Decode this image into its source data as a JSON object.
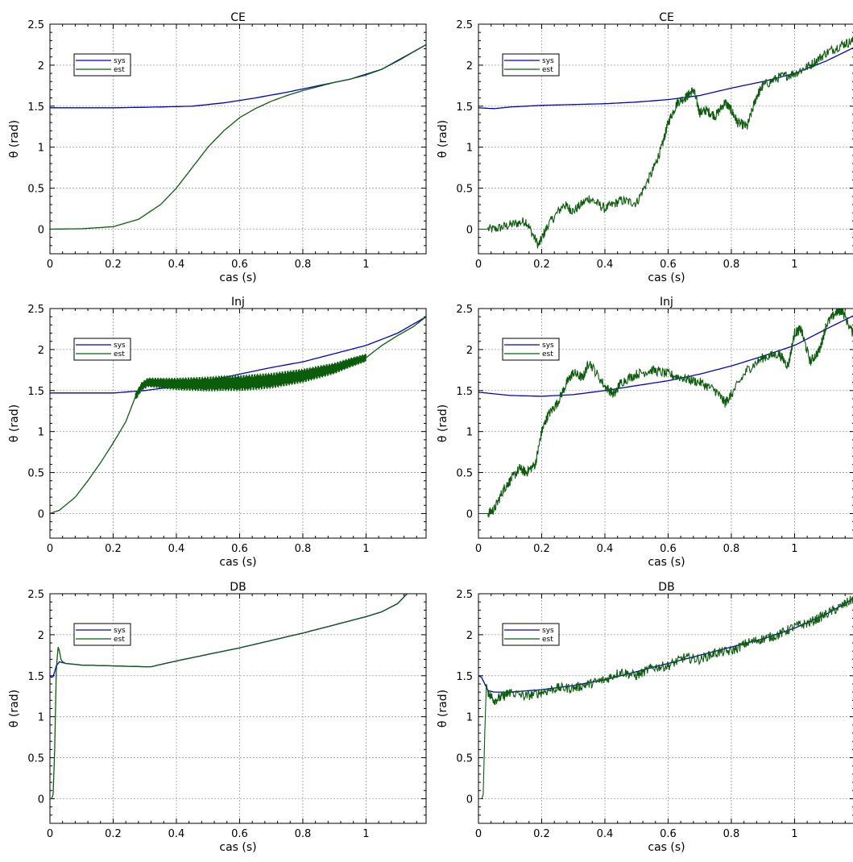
{
  "figure": {
    "rows": 3,
    "cols": 2
  },
  "colors": {
    "sys": "#0000cc",
    "est": "#0b5c0b",
    "grid": "#9a9a9a"
  },
  "chart_data": [
    {
      "type": "line",
      "title": "CE",
      "xlabel": "cas (s)",
      "ylabel": "θ (rad)",
      "xlim": [
        0,
        1.19
      ],
      "ylim": [
        -0.3,
        2.5
      ],
      "xticks": [
        0,
        0.2,
        0.4,
        0.6,
        0.8,
        1
      ],
      "xtick_labels": [
        "0",
        "0.2",
        "0.4",
        "0.6",
        "0.8",
        "1"
      ],
      "yticks": [
        0,
        0.5,
        1,
        1.5,
        2,
        2.5
      ],
      "ytick_labels": [
        "0",
        "0.5",
        "1",
        "1.5",
        "2",
        "2.5"
      ],
      "grid": true,
      "legend": "top-left",
      "series": [
        {
          "name": "sys",
          "color": "#0000cc",
          "x": [
            0,
            0.2,
            0.35,
            0.45,
            0.55,
            0.65,
            0.75,
            0.85,
            0.95,
            1.05,
            1.19
          ],
          "y": [
            1.48,
            1.48,
            1.49,
            1.5,
            1.54,
            1.6,
            1.67,
            1.75,
            1.83,
            1.95,
            2.25
          ]
        },
        {
          "name": "est",
          "color": "#0b5c0b",
          "x": [
            0,
            0.1,
            0.2,
            0.28,
            0.35,
            0.4,
            0.45,
            0.5,
            0.55,
            0.6,
            0.65,
            0.7,
            0.75,
            0.8,
            0.85,
            0.9,
            0.95,
            1.0,
            1.05,
            1.1,
            1.19
          ],
          "y": [
            0,
            0.005,
            0.03,
            0.12,
            0.3,
            0.5,
            0.75,
            1.0,
            1.2,
            1.36,
            1.47,
            1.56,
            1.63,
            1.69,
            1.74,
            1.79,
            1.83,
            1.88,
            1.95,
            2.05,
            2.25
          ]
        }
      ]
    },
    {
      "type": "line",
      "title": "CE",
      "xlabel": "cas (s)",
      "ylabel": "θ (rad)",
      "xlim": [
        0,
        1.19
      ],
      "ylim": [
        -0.3,
        2.5
      ],
      "xticks": [
        0,
        0.2,
        0.4,
        0.6,
        0.8,
        1
      ],
      "xtick_labels": [
        "0",
        "0.2",
        "0.4",
        "0.6",
        "0.8",
        "1"
      ],
      "yticks": [
        0,
        0.5,
        1,
        1.5,
        2,
        2.5
      ],
      "ytick_labels": [
        "0",
        "0.5",
        "1",
        "1.5",
        "2",
        "2.5"
      ],
      "grid": true,
      "legend": "top-left",
      "series": [
        {
          "name": "sys",
          "color": "#0000cc",
          "x": [
            0,
            0.05,
            0.1,
            0.2,
            0.3,
            0.4,
            0.5,
            0.6,
            0.7,
            0.8,
            0.9,
            1.0,
            1.1,
            1.19
          ],
          "y": [
            1.48,
            1.47,
            1.49,
            1.51,
            1.52,
            1.53,
            1.55,
            1.58,
            1.63,
            1.72,
            1.8,
            1.9,
            2.05,
            2.22
          ]
        },
        {
          "name": "est",
          "color": "#0b5c0b",
          "x": [
            0,
            0.05,
            0.1,
            0.15,
            0.19,
            0.22,
            0.27,
            0.3,
            0.35,
            0.4,
            0.45,
            0.5,
            0.55,
            0.58,
            0.6,
            0.63,
            0.66,
            0.68,
            0.7,
            0.72,
            0.75,
            0.78,
            0.8,
            0.82,
            0.85,
            0.88,
            0.9,
            0.95,
            1.0,
            1.05,
            1.1,
            1.15,
            1.19
          ],
          "y": [
            0,
            0,
            0.05,
            0.1,
            -0.2,
            0.05,
            0.3,
            0.22,
            0.38,
            0.25,
            0.35,
            0.32,
            0.7,
            1.0,
            1.3,
            1.55,
            1.62,
            1.7,
            1.42,
            1.45,
            1.38,
            1.55,
            1.45,
            1.3,
            1.25,
            1.62,
            1.75,
            1.85,
            1.9,
            2.0,
            2.15,
            2.25,
            2.3
          ]
        }
      ]
    },
    {
      "type": "line",
      "title": "Inj",
      "xlabel": "cas (s)",
      "ylabel": "θ (rad)",
      "xlim": [
        0,
        1.19
      ],
      "ylim": [
        -0.3,
        2.5
      ],
      "xticks": [
        0,
        0.2,
        0.4,
        0.6,
        0.8,
        1
      ],
      "xtick_labels": [
        "0",
        "0.2",
        "0.4",
        "0.6",
        "0.8",
        "1"
      ],
      "yticks": [
        0,
        0.5,
        1,
        1.5,
        2,
        2.5
      ],
      "ytick_labels": [
        "0",
        "0.5",
        "1",
        "1.5",
        "2",
        "2.5"
      ],
      "grid": true,
      "legend": "top-left",
      "series": [
        {
          "name": "sys",
          "color": "#0000cc",
          "x": [
            0,
            0.2,
            0.3,
            0.4,
            0.5,
            0.6,
            0.7,
            0.8,
            0.9,
            1.0,
            1.1,
            1.19
          ],
          "y": [
            1.47,
            1.47,
            1.5,
            1.55,
            1.62,
            1.7,
            1.78,
            1.85,
            1.95,
            2.05,
            2.2,
            2.4
          ]
        },
        {
          "name": "est",
          "color": "#0b5c0b",
          "x": [
            0,
            0.03,
            0.08,
            0.12,
            0.16,
            0.2,
            0.24,
            0.27,
            0.29,
            0.31,
            0.35,
            0.4,
            0.45,
            0.5,
            0.55,
            0.6,
            0.7,
            0.8,
            0.9,
            0.95,
            1.0,
            1.05,
            1.1,
            1.15,
            1.19
          ],
          "y": [
            0,
            0.04,
            0.2,
            0.4,
            0.62,
            0.86,
            1.12,
            1.42,
            1.55,
            1.6,
            1.59,
            1.58,
            1.58,
            1.58,
            1.59,
            1.59,
            1.62,
            1.68,
            1.77,
            1.84,
            1.9,
            2.05,
            2.17,
            2.28,
            2.4
          ]
        }
      ]
    },
    {
      "type": "line",
      "title": "Inj",
      "xlabel": "cas (s)",
      "ylabel": "θ (rad)",
      "xlim": [
        0,
        1.19
      ],
      "ylim": [
        -0.3,
        2.5
      ],
      "xticks": [
        0,
        0.2,
        0.4,
        0.6,
        0.8,
        1
      ],
      "xtick_labels": [
        "0",
        "0.2",
        "0.4",
        "0.6",
        "0.8",
        "1"
      ],
      "yticks": [
        0,
        0.5,
        1,
        1.5,
        2,
        2.5
      ],
      "ytick_labels": [
        "0",
        "0.5",
        "1",
        "1.5",
        "2",
        "2.5"
      ],
      "grid": true,
      "legend": "top-left",
      "series": [
        {
          "name": "sys",
          "color": "#0000cc",
          "x": [
            0,
            0.05,
            0.1,
            0.2,
            0.3,
            0.4,
            0.5,
            0.6,
            0.7,
            0.8,
            0.9,
            1.0,
            1.1,
            1.19
          ],
          "y": [
            1.48,
            1.46,
            1.44,
            1.43,
            1.45,
            1.5,
            1.56,
            1.62,
            1.7,
            1.8,
            1.92,
            2.05,
            2.25,
            2.42
          ]
        },
        {
          "name": "est",
          "color": "#0b5c0b",
          "x": [
            0,
            0.03,
            0.05,
            0.08,
            0.1,
            0.13,
            0.15,
            0.18,
            0.2,
            0.22,
            0.25,
            0.28,
            0.3,
            0.33,
            0.35,
            0.4,
            0.43,
            0.45,
            0.5,
            0.55,
            0.6,
            0.65,
            0.7,
            0.75,
            0.78,
            0.8,
            0.85,
            0.9,
            0.95,
            0.98,
            1.0,
            1.02,
            1.05,
            1.08,
            1.1,
            1.13,
            1.15,
            1.19
          ],
          "y": [
            0,
            0,
            0.05,
            0.3,
            0.4,
            0.55,
            0.5,
            0.6,
            1.0,
            1.2,
            1.35,
            1.6,
            1.72,
            1.65,
            1.85,
            1.55,
            1.45,
            1.6,
            1.7,
            1.75,
            1.7,
            1.65,
            1.6,
            1.5,
            1.35,
            1.45,
            1.75,
            1.9,
            1.95,
            1.8,
            2.2,
            2.25,
            1.85,
            2.0,
            2.3,
            2.45,
            2.48,
            2.15
          ]
        }
      ]
    },
    {
      "type": "line",
      "title": "DB",
      "xlabel": "cas (s)",
      "ylabel": "θ (rad)",
      "xlim": [
        0,
        1.19
      ],
      "ylim": [
        -0.3,
        2.5
      ],
      "xticks": [
        0,
        0.2,
        0.4,
        0.6,
        0.8,
        1
      ],
      "xtick_labels": [
        "0",
        "0.2",
        "0.4",
        "0.6",
        "0.8",
        "1"
      ],
      "yticks": [
        0,
        0.5,
        1,
        1.5,
        2,
        2.5
      ],
      "ytick_labels": [
        "0",
        "0.5",
        "1",
        "1.5",
        "2",
        "2.5"
      ],
      "grid": true,
      "legend": "top-left",
      "series": [
        {
          "name": "sys",
          "color": "#0000cc",
          "x": [
            0,
            0.005,
            0.01,
            0.015,
            0.02,
            0.03,
            0.05,
            0.1,
            0.2,
            0.3,
            0.32,
            0.4,
            0.5,
            0.6,
            0.7,
            0.8,
            0.9,
            1.0,
            1.05,
            1.1,
            1.13
          ],
          "y": [
            1.5,
            1.48,
            1.49,
            1.55,
            1.62,
            1.67,
            1.65,
            1.63,
            1.62,
            1.61,
            1.61,
            1.68,
            1.76,
            1.84,
            1.93,
            2.02,
            2.12,
            2.22,
            2.28,
            2.38,
            2.5
          ]
        },
        {
          "name": "est",
          "color": "#0b5c0b",
          "x": [
            0,
            0.005,
            0.01,
            0.015,
            0.02,
            0.023,
            0.026,
            0.03,
            0.035,
            0.04,
            0.05,
            0.1,
            0.2,
            0.3,
            0.32,
            0.4,
            0.5,
            0.6,
            0.7,
            0.8,
            0.9,
            1.0,
            1.05,
            1.1,
            1.13
          ],
          "y": [
            0,
            0,
            0.05,
            0.6,
            1.55,
            1.72,
            1.85,
            1.8,
            1.7,
            1.67,
            1.65,
            1.63,
            1.62,
            1.61,
            1.61,
            1.68,
            1.76,
            1.84,
            1.93,
            2.02,
            2.12,
            2.22,
            2.28,
            2.38,
            2.5
          ]
        }
      ]
    },
    {
      "type": "line",
      "title": "DB",
      "xlabel": "cas (s)",
      "ylabel": "θ (rad)",
      "xlim": [
        0,
        1.19
      ],
      "ylim": [
        -0.3,
        2.5
      ],
      "xticks": [
        0,
        0.2,
        0.4,
        0.6,
        0.8,
        1
      ],
      "xtick_labels": [
        "0",
        "0.2",
        "0.4",
        "0.6",
        "0.8",
        "1"
      ],
      "yticks": [
        0,
        0.5,
        1,
        1.5,
        2,
        2.5
      ],
      "ytick_labels": [
        "0",
        "0.5",
        "1",
        "1.5",
        "2",
        "2.5"
      ],
      "grid": true,
      "legend": "top-left",
      "series": [
        {
          "name": "sys",
          "color": "#0000cc",
          "x": [
            0,
            0.01,
            0.02,
            0.03,
            0.05,
            0.1,
            0.2,
            0.3,
            0.4,
            0.5,
            0.6,
            0.7,
            0.8,
            0.9,
            1.0,
            1.1,
            1.19
          ],
          "y": [
            1.5,
            1.48,
            1.4,
            1.32,
            1.3,
            1.3,
            1.33,
            1.38,
            1.45,
            1.55,
            1.65,
            1.75,
            1.85,
            1.95,
            2.08,
            2.25,
            2.45
          ]
        },
        {
          "name": "est",
          "color": "#0b5c0b",
          "x": [
            0,
            0.01,
            0.015,
            0.02,
            0.025,
            0.03,
            0.05,
            0.08,
            0.1,
            0.15,
            0.2,
            0.25,
            0.3,
            0.35,
            0.4,
            0.45,
            0.5,
            0.55,
            0.6,
            0.65,
            0.7,
            0.75,
            0.8,
            0.85,
            0.9,
            0.95,
            1.0,
            1.05,
            1.1,
            1.15,
            1.19
          ],
          "y": [
            0,
            0,
            0.05,
            0.8,
            1.4,
            1.3,
            1.2,
            1.25,
            1.3,
            1.25,
            1.3,
            1.35,
            1.35,
            1.4,
            1.45,
            1.55,
            1.5,
            1.6,
            1.62,
            1.72,
            1.7,
            1.78,
            1.8,
            1.9,
            1.95,
            2.0,
            2.1,
            2.15,
            2.25,
            2.35,
            2.45
          ]
        }
      ]
    }
  ]
}
